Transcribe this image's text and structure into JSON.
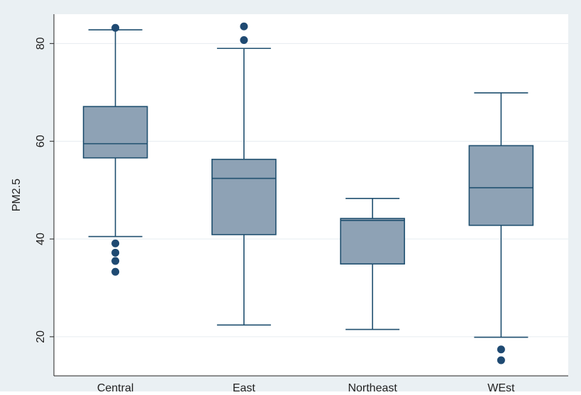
{
  "chart_data": {
    "type": "box",
    "title": "",
    "xlabel": "",
    "ylabel": "PM2.5",
    "ylim": [
      12,
      86
    ],
    "yticks": [
      20,
      40,
      60,
      80
    ],
    "grid": true,
    "colors": {
      "box_fill": "#8ea2b5",
      "box_stroke": "#1f4f6f",
      "outlier": "#1f4a72",
      "grid": "#e6ecf0",
      "outer_background": "#eaf0f3",
      "plot_background": "#ffffff"
    },
    "categories": [
      "Central",
      "East",
      "Northeast",
      "WEst"
    ],
    "boxes": [
      {
        "category": "Central",
        "whisker_low": 40.5,
        "q1": 56.6,
        "median": 59.5,
        "q3": 67.1,
        "whisker_high": 82.8,
        "outliers": [
          83.2,
          39.1,
          37.2,
          35.5,
          33.3
        ]
      },
      {
        "category": "East",
        "whisker_low": 22.4,
        "q1": 40.9,
        "median": 52.4,
        "q3": 56.3,
        "whisker_high": 79.0,
        "outliers": [
          83.5,
          80.7
        ]
      },
      {
        "category": "Northeast",
        "whisker_low": 21.5,
        "q1": 34.9,
        "median": 43.8,
        "q3": 44.2,
        "whisker_high": 48.3,
        "outliers": []
      },
      {
        "category": "WEst",
        "whisker_low": 19.9,
        "q1": 42.8,
        "median": 50.5,
        "q3": 59.1,
        "whisker_high": 69.9,
        "outliers": [
          17.4,
          15.2
        ]
      }
    ]
  }
}
